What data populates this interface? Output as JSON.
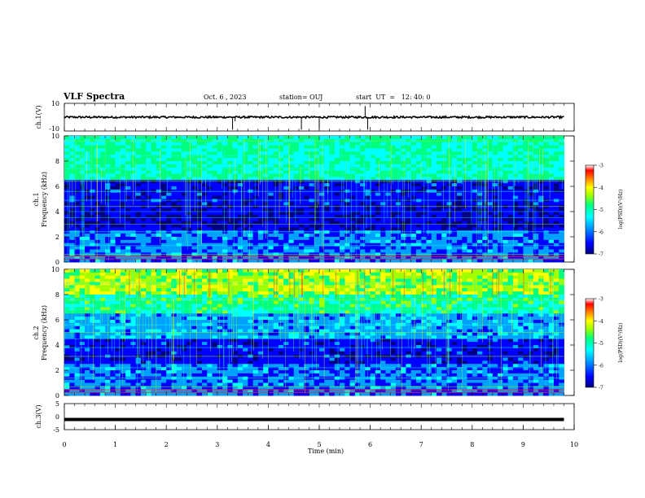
{
  "header": {
    "title": "VLF Spectra",
    "date": "Oct. 6 , 2023",
    "station": "station= OUJ",
    "start": "start  UT  =   12: 40: 0"
  },
  "colorbar": {
    "label": "log(PSD)(V²/Hz)",
    "ticks": [
      "-3",
      "-4",
      "-5",
      "-6",
      "-7"
    ],
    "colors": [
      "#000080",
      "#0000ff",
      "#00a0ff",
      "#00ffff",
      "#00ff80",
      "#a0ff00",
      "#ffff00",
      "#ff8000",
      "#ff0000",
      "#ffffff"
    ]
  },
  "chart_data": [
    {
      "type": "line",
      "panel": "ch1-voltage",
      "ylabel": "ch.1(V)",
      "ylim": [
        -10,
        10
      ],
      "y_tick_labels": [
        "10",
        "-10"
      ],
      "baseline": 0,
      "spikes": [
        {
          "t": 3.3,
          "v": -9
        },
        {
          "t": 3.35,
          "v": -3
        },
        {
          "t": 4.65,
          "v": -9
        },
        {
          "t": 5.0,
          "v": -9
        },
        {
          "t": 5.9,
          "v": 8
        },
        {
          "t": 5.95,
          "v": -9
        }
      ]
    },
    {
      "type": "heatmap",
      "panel": "ch1-spectrogram",
      "ylabel": "Frequency (kHz)",
      "channel_label": "ch.1",
      "ylim": [
        0,
        10
      ],
      "y_tick_labels": [
        "0",
        "2",
        "4",
        "6",
        "8",
        "10"
      ],
      "xlim": [
        0,
        10
      ],
      "data_end_min": 9.8
    },
    {
      "type": "heatmap",
      "panel": "ch2-spectrogram",
      "ylabel": "Frequency (kHz)",
      "channel_label": "ch.2",
      "ylim": [
        0,
        10
      ],
      "y_tick_labels": [
        "0",
        "2",
        "4",
        "6",
        "8",
        "10"
      ],
      "xlim": [
        0,
        10
      ],
      "data_end_min": 9.8
    },
    {
      "type": "line",
      "panel": "ch3-voltage",
      "ylabel": "ch.3(V)",
      "ylim": [
        -5,
        5
      ],
      "y_tick_labels": [
        "5",
        "0",
        "-5"
      ],
      "baseline": -1.1
    }
  ],
  "xaxis": {
    "label": "Time (min)",
    "ticks": [
      "0",
      "1",
      "2",
      "3",
      "4",
      "5",
      "6",
      "7",
      "8",
      "9",
      "10"
    ]
  }
}
